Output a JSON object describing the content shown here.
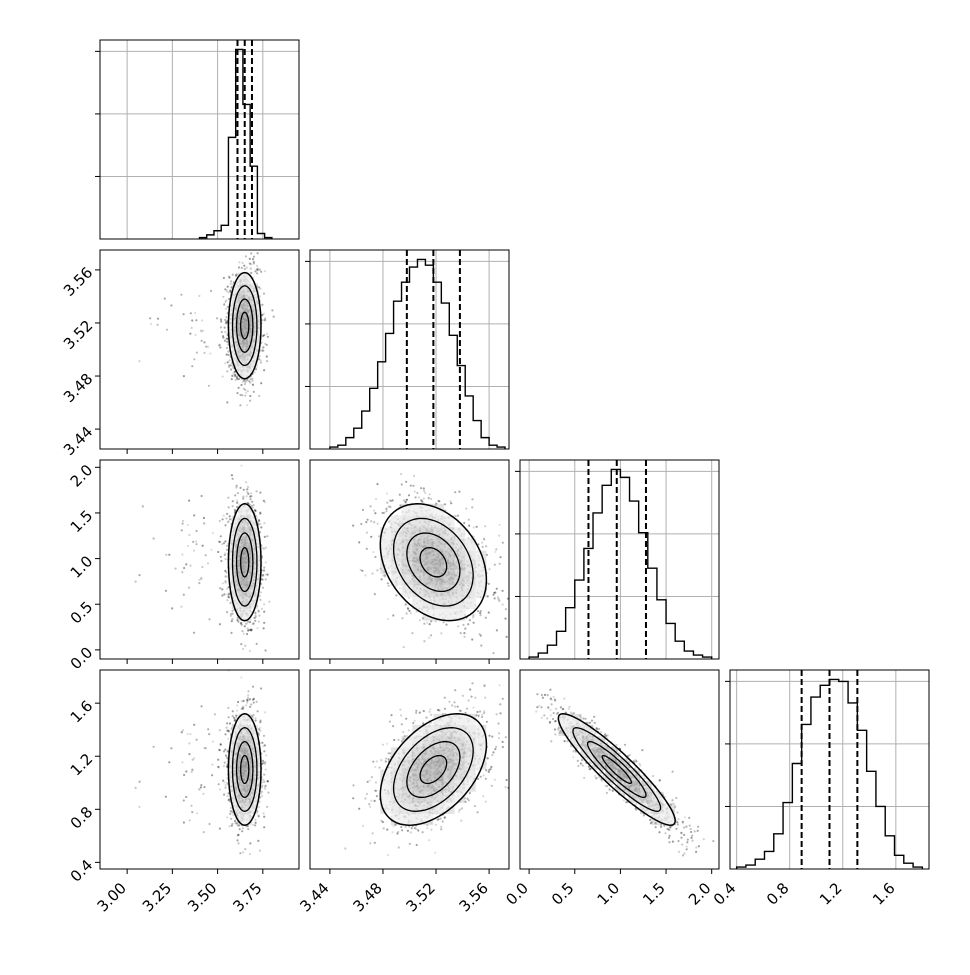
{
  "chart_data": {
    "type": "corner",
    "parameters": [
      {
        "index": 0,
        "range": [
          2.85,
          3.95
        ],
        "ticks": [
          "3.00",
          "3.25",
          "3.50",
          "3.75"
        ],
        "tick_values": [
          3.0,
          3.25,
          3.5,
          3.75
        ],
        "median": 3.65,
        "sigma": 0.045,
        "quantiles": [
          3.61,
          3.65,
          3.69
        ],
        "hist_edges": [
          3.4,
          3.44,
          3.48,
          3.52,
          3.56,
          3.6,
          3.64,
          3.68,
          3.72,
          3.76,
          3.8
        ],
        "hist_counts": [
          1,
          3,
          6,
          10,
          74,
          138,
          98,
          53,
          4,
          1
        ]
      },
      {
        "index": 1,
        "range": [
          3.425,
          3.575
        ],
        "ticks": [
          "3.44",
          "3.48",
          "3.52",
          "3.56"
        ],
        "tick_values": [
          3.44,
          3.48,
          3.52,
          3.56
        ],
        "median": 3.518,
        "sigma": 0.02,
        "quantiles": [
          3.498,
          3.518,
          3.538
        ],
        "hist_edges": [
          3.44,
          3.446,
          3.452,
          3.458,
          3.464,
          3.47,
          3.476,
          3.482,
          3.488,
          3.494,
          3.5,
          3.506,
          3.512,
          3.518,
          3.524,
          3.53,
          3.536,
          3.542,
          3.548,
          3.554,
          3.56,
          3.566,
          3.572
        ],
        "hist_counts": [
          1,
          2,
          6,
          11,
          20,
          32,
          46,
          61,
          78,
          88,
          96,
          100,
          97,
          88,
          77,
          60,
          44,
          28,
          15,
          6,
          2,
          1
        ]
      },
      {
        "index": 2,
        "range": [
          -0.1,
          2.08
        ],
        "ticks": [
          "0.0",
          "0.5",
          "1.0",
          "1.5",
          "2.0"
        ],
        "tick_values": [
          0.0,
          0.5,
          1.0,
          1.5,
          2.0
        ],
        "median": 0.96,
        "sigma": 0.32,
        "quantiles": [
          0.65,
          0.96,
          1.28
        ],
        "hist_edges": [
          0.0,
          0.1,
          0.2,
          0.3,
          0.4,
          0.5,
          0.6,
          0.7,
          0.8,
          0.9,
          1.0,
          1.1,
          1.2,
          1.3,
          1.4,
          1.5,
          1.6,
          1.7,
          1.8,
          1.9,
          2.0
        ],
        "hist_counts": [
          1,
          3,
          7,
          14,
          26,
          40,
          56,
          74,
          88,
          96,
          92,
          80,
          64,
          46,
          30,
          18,
          9,
          4,
          2,
          1
        ]
      },
      {
        "index": 3,
        "range": [
          0.35,
          1.85
        ],
        "ticks": [
          "0.4",
          "0.8",
          "1.2",
          "1.6"
        ],
        "tick_values": [
          0.4,
          0.8,
          1.2,
          1.6
        ],
        "median": 1.1,
        "sigma": 0.21,
        "quantiles": [
          0.89,
          1.1,
          1.31
        ],
        "hist_edges": [
          0.4,
          0.47,
          0.54,
          0.61,
          0.68,
          0.75,
          0.82,
          0.89,
          0.96,
          1.03,
          1.1,
          1.17,
          1.24,
          1.31,
          1.38,
          1.45,
          1.52,
          1.59,
          1.66,
          1.73,
          1.8
        ],
        "hist_counts": [
          1,
          2,
          5,
          9,
          18,
          34,
          54,
          74,
          88,
          94,
          97,
          96,
          85,
          71,
          50,
          32,
          17,
          7,
          3,
          1
        ]
      }
    ],
    "correlations": [
      {
        "x": 0,
        "y": 1,
        "rho": 0.0
      },
      {
        "x": 0,
        "y": 2,
        "rho": 0.0
      },
      {
        "x": 1,
        "y": 2,
        "rho": -0.3
      },
      {
        "x": 0,
        "y": 3,
        "rho": 0.0
      },
      {
        "x": 1,
        "y": 3,
        "rho": 0.45
      },
      {
        "x": 2,
        "y": 3,
        "rho": -0.92
      }
    ],
    "contour_levels": [
      0.5,
      1.0,
      1.5,
      2.0
    ],
    "grid": true,
    "title": "",
    "legend": "none"
  }
}
